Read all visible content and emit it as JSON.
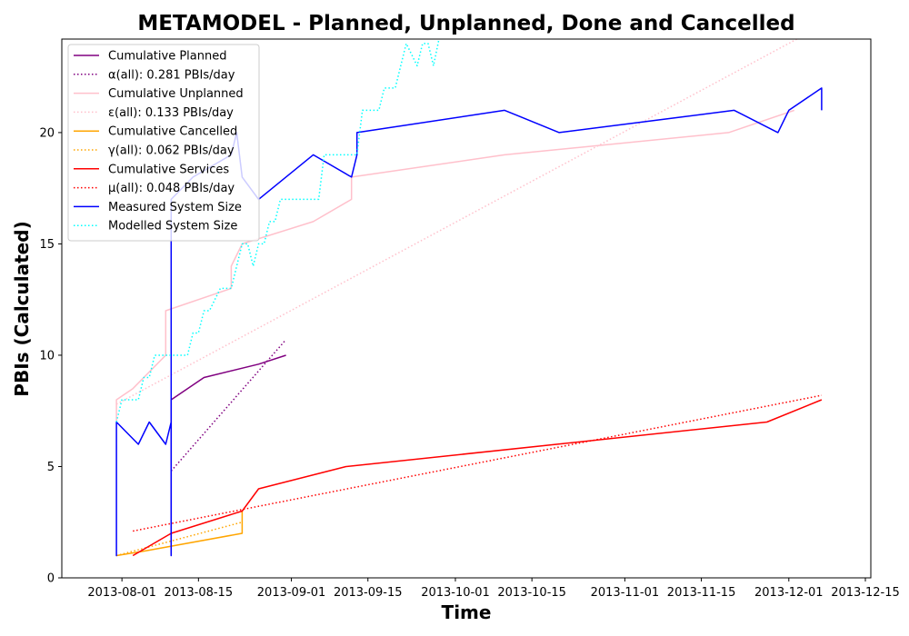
{
  "chart_data": {
    "type": "line",
    "title": "METAMODEL - Planned, Unplanned, Done  and Cancelled",
    "xlabel": "Time",
    "ylabel": "PBIs (Calculated)",
    "xlim": [
      "2013-07-21",
      "2013-12-16"
    ],
    "ylim": [
      0,
      24.2
    ],
    "x_ticks": [
      "2013-08-01",
      "2013-08-15",
      "2013-09-01",
      "2013-09-15",
      "2013-10-01",
      "2013-10-15",
      "2013-11-01",
      "2013-11-15",
      "2013-12-01",
      "2013-12-15"
    ],
    "y_ticks": [
      0,
      5,
      10,
      15,
      20
    ],
    "grid": false,
    "legend_position": "top-left",
    "series": [
      {
        "name": "Cumulative Planned",
        "color": "#800080",
        "style": "solid",
        "points": [
          [
            "2013-08-10",
            1
          ],
          [
            "2013-08-10",
            8
          ],
          [
            "2013-08-16",
            9
          ],
          [
            "2013-08-26",
            9.6
          ],
          [
            "2013-08-31",
            10
          ]
        ]
      },
      {
        "name": "α(all): 0.281 PBIs/day",
        "color": "#800080",
        "style": "dotted",
        "points": [
          [
            "2013-08-10",
            4.8
          ],
          [
            "2013-08-31",
            10.7
          ]
        ]
      },
      {
        "name": "Cumulative Unplanned",
        "color": "#ffc0cb",
        "style": "solid",
        "points": [
          [
            "2013-07-31",
            7
          ],
          [
            "2013-07-31",
            8
          ],
          [
            "2013-08-03",
            8.5
          ],
          [
            "2013-08-09",
            10
          ],
          [
            "2013-08-09",
            12
          ],
          [
            "2013-08-21",
            13
          ],
          [
            "2013-08-21",
            14
          ],
          [
            "2013-08-23",
            15
          ],
          [
            "2013-09-05",
            16
          ],
          [
            "2013-09-12",
            17
          ],
          [
            "2013-09-12",
            18
          ],
          [
            "2013-10-10",
            19
          ],
          [
            "2013-11-20",
            20
          ],
          [
            "2013-12-02",
            21
          ]
        ]
      },
      {
        "name": "ε(all): 0.133 PBIs/day",
        "color": "#ffc0cb",
        "style": "dotted",
        "points": [
          [
            "2013-07-31",
            7.8
          ],
          [
            "2013-12-04",
            24.4
          ]
        ]
      },
      {
        "name": "Cumulative Cancelled",
        "color": "#ffa500",
        "style": "solid",
        "points": [
          [
            "2013-07-31",
            1
          ],
          [
            "2013-08-05",
            1.2
          ],
          [
            "2013-08-23",
            2
          ],
          [
            "2013-08-23",
            3
          ]
        ]
      },
      {
        "name": "γ(all): 0.062 PBIs/day",
        "color": "#ffa500",
        "style": "dotted",
        "points": [
          [
            "2013-07-31",
            1
          ],
          [
            "2013-08-23",
            2.5
          ]
        ]
      },
      {
        "name": "Cumulative Services",
        "color": "#ff0000",
        "style": "solid",
        "points": [
          [
            "2013-08-03",
            1
          ],
          [
            "2013-08-10",
            2
          ],
          [
            "2013-08-23",
            3
          ],
          [
            "2013-08-26",
            4
          ],
          [
            "2013-09-11",
            5
          ],
          [
            "2013-09-15",
            5.1
          ],
          [
            "2013-11-27",
            7
          ],
          [
            "2013-12-07",
            8
          ]
        ]
      },
      {
        "name": "μ(all): 0.048 PBIs/day",
        "color": "#ff0000",
        "style": "dotted",
        "points": [
          [
            "2013-08-03",
            2.1
          ],
          [
            "2013-12-07",
            8.2
          ]
        ]
      },
      {
        "name": "Measured System Size",
        "color": "#0000ff",
        "style": "solid",
        "points": [
          [
            "2013-07-31",
            2
          ],
          [
            "2013-07-31",
            1
          ],
          [
            "2013-07-31",
            7
          ],
          [
            "2013-08-04",
            6
          ],
          [
            "2013-08-06",
            7
          ],
          [
            "2013-08-09",
            6
          ],
          [
            "2013-08-10",
            7
          ],
          [
            "2013-08-10",
            1
          ],
          [
            "2013-08-10",
            17
          ],
          [
            "2013-08-14",
            18
          ],
          [
            "2013-08-21",
            19
          ],
          [
            "2013-08-22",
            20
          ],
          [
            "2013-08-23",
            18
          ],
          [
            "2013-08-26",
            17
          ],
          [
            "2013-09-05",
            19
          ],
          [
            "2013-09-12",
            18
          ],
          [
            "2013-09-13",
            19
          ],
          [
            "2013-09-13",
            20
          ],
          [
            "2013-10-10",
            21
          ],
          [
            "2013-10-20",
            20
          ],
          [
            "2013-11-21",
            21
          ],
          [
            "2013-11-29",
            20
          ],
          [
            "2013-12-01",
            21
          ],
          [
            "2013-12-07",
            22
          ],
          [
            "2013-12-07",
            21
          ]
        ]
      },
      {
        "name": "Modelled System Size",
        "color": "#00ffff",
        "style": "dotted",
        "points": [
          [
            "2013-07-31",
            7
          ],
          [
            "2013-08-01",
            8
          ],
          [
            "2013-08-04",
            8
          ],
          [
            "2013-08-05",
            9
          ],
          [
            "2013-08-06",
            9
          ],
          [
            "2013-08-07",
            10
          ],
          [
            "2013-08-13",
            10
          ],
          [
            "2013-08-14",
            11
          ],
          [
            "2013-08-15",
            11
          ],
          [
            "2013-08-16",
            12
          ],
          [
            "2013-08-17",
            12
          ],
          [
            "2013-08-19",
            13
          ],
          [
            "2013-08-21",
            13
          ],
          [
            "2013-08-22",
            14
          ],
          [
            "2013-08-23",
            15
          ],
          [
            "2013-08-24",
            15
          ],
          [
            "2013-08-25",
            14
          ],
          [
            "2013-08-26",
            15
          ],
          [
            "2013-08-27",
            15
          ],
          [
            "2013-08-28",
            16
          ],
          [
            "2013-08-29",
            16
          ],
          [
            "2013-08-30",
            17
          ],
          [
            "2013-09-06",
            17
          ],
          [
            "2013-09-07",
            19
          ],
          [
            "2013-09-13",
            19
          ],
          [
            "2013-09-14",
            21
          ],
          [
            "2013-09-17",
            21
          ],
          [
            "2013-09-18",
            22
          ],
          [
            "2013-09-20",
            22
          ],
          [
            "2013-09-22",
            24
          ],
          [
            "2013-09-24",
            23
          ],
          [
            "2013-09-25",
            24
          ],
          [
            "2013-09-26",
            24
          ],
          [
            "2013-09-27",
            23
          ],
          [
            "2013-09-28",
            24.2
          ]
        ]
      }
    ]
  }
}
